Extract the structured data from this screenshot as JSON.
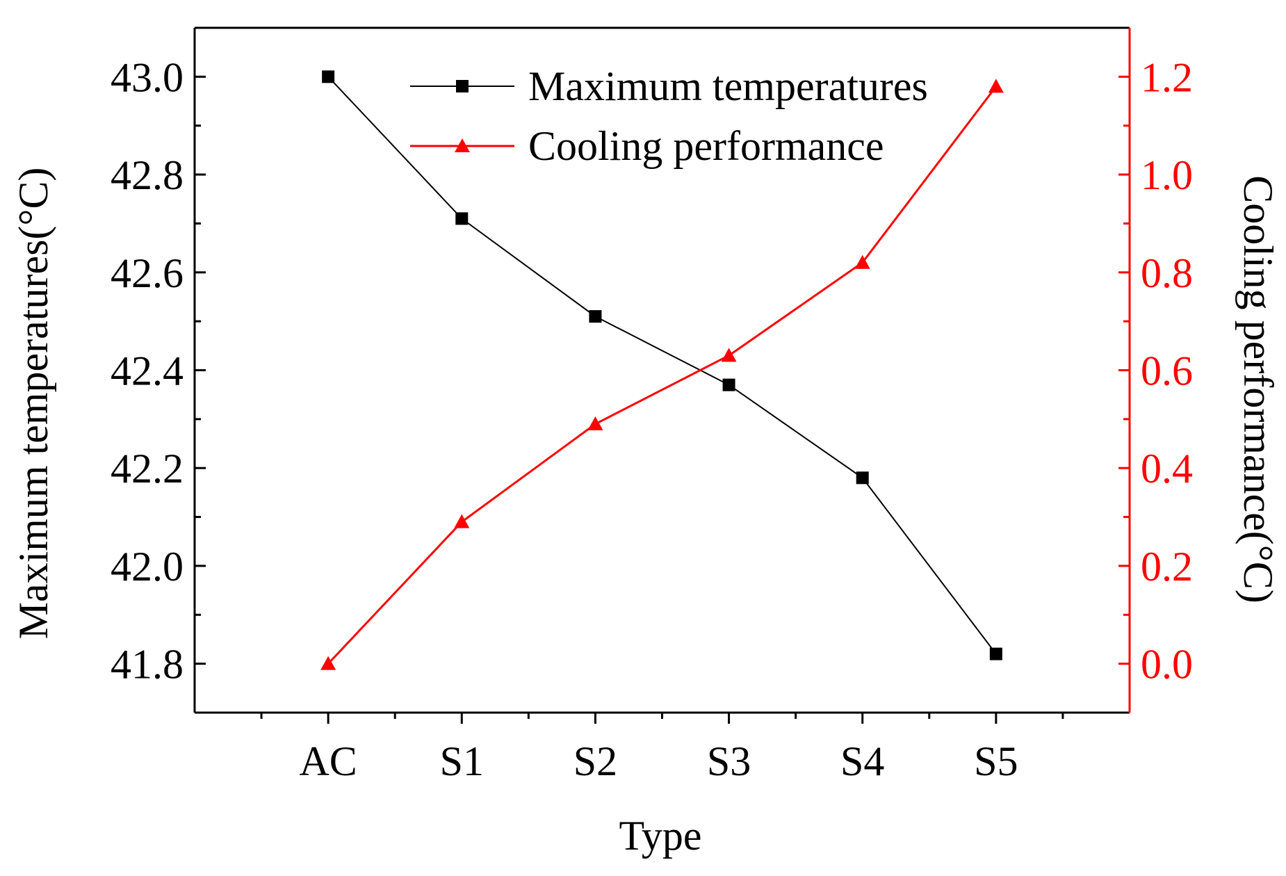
{
  "chart_data": {
    "type": "line",
    "title": "",
    "xlabel": "Type",
    "ylabel": "Maximum temperatures(°C)",
    "y2label": "Cooling performance(°C)",
    "categories": [
      "AC",
      "S1",
      "S2",
      "S3",
      "S4",
      "S5"
    ],
    "ylim": [
      41.7,
      43.1
    ],
    "y2lim": [
      -0.1,
      1.3
    ],
    "yticks": [
      "41.8",
      "42.0",
      "42.2",
      "42.4",
      "42.6",
      "42.8",
      "43.0"
    ],
    "ytick_values": [
      41.8,
      42.0,
      42.2,
      42.4,
      42.6,
      42.8,
      43.0
    ],
    "y2ticks": [
      "0.0",
      "0.2",
      "0.4",
      "0.6",
      "0.8",
      "1.0",
      "1.2"
    ],
    "y2tick_values": [
      0.0,
      0.2,
      0.4,
      0.6,
      0.8,
      1.0,
      1.2
    ],
    "grid": false,
    "legend_position": "top-center",
    "series": [
      {
        "name": "Maximum temperatures",
        "axis": "left",
        "marker": "square",
        "color": "#000000",
        "values": [
          43.0,
          42.71,
          42.51,
          42.37,
          42.18,
          41.82
        ]
      },
      {
        "name": "Cooling performance",
        "axis": "right",
        "marker": "triangle",
        "color": "#ff0000",
        "values": [
          0.0,
          0.29,
          0.49,
          0.63,
          0.82,
          1.18
        ]
      }
    ]
  }
}
